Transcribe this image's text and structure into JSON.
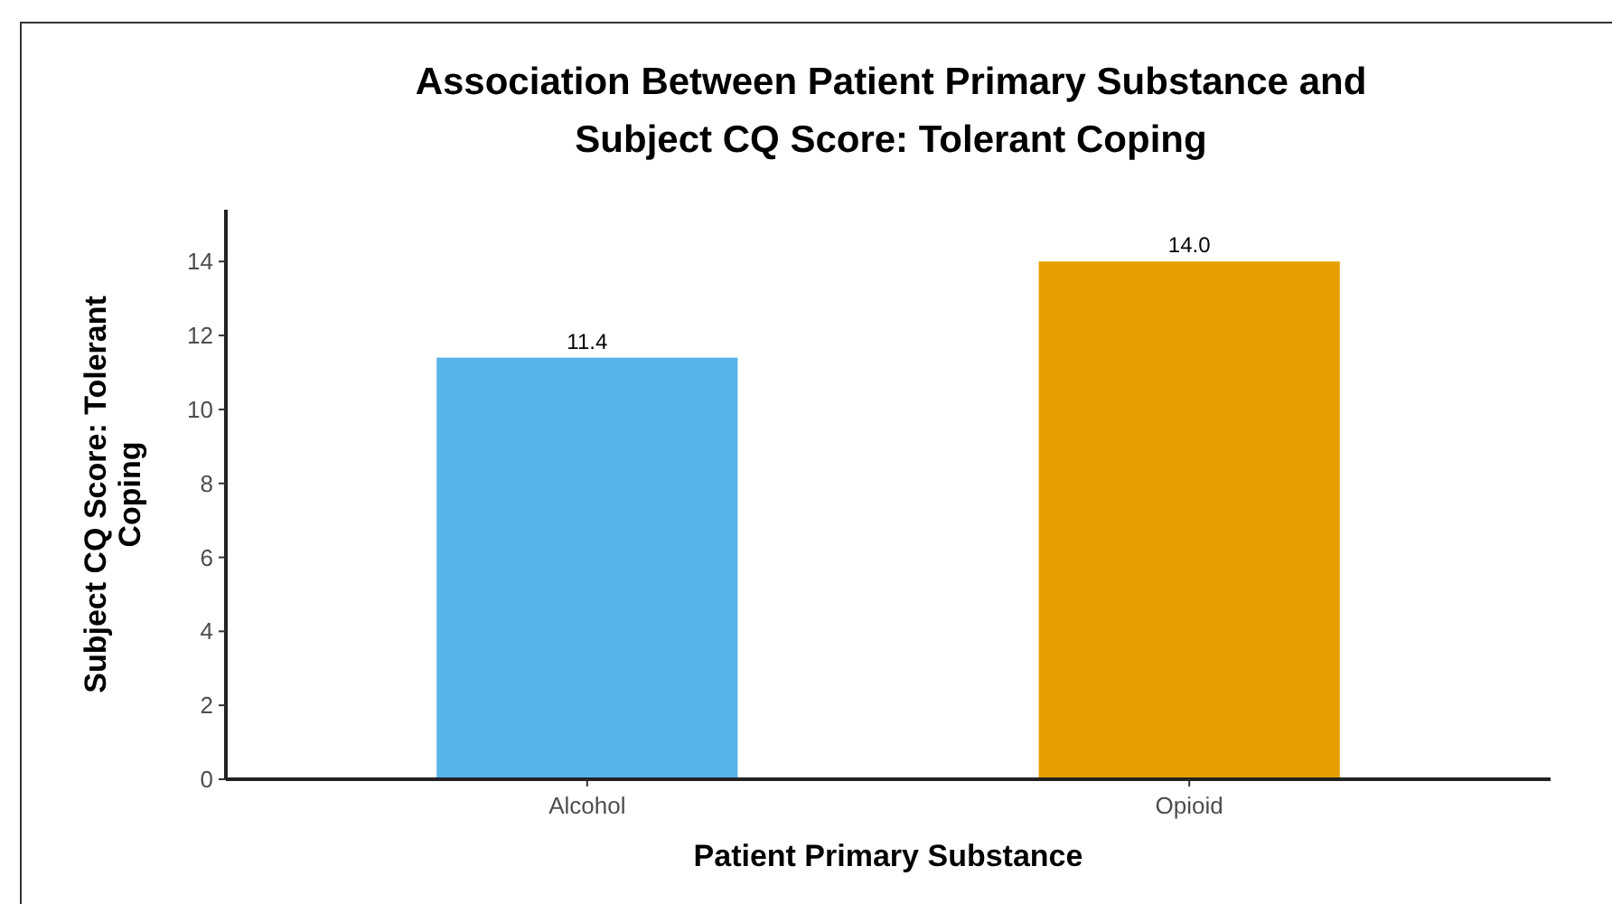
{
  "chart_data": {
    "type": "bar",
    "title": "Association Between Patient Primary Substance and\nSubject CQ Score: Tolerant Coping",
    "xlabel": "Patient Primary Substance",
    "ylabel": "Subject CQ Score: Tolerant\nCoping",
    "categories": [
      "Alcohol",
      "Opioid"
    ],
    "values": [
      11.4,
      14.0
    ],
    "value_labels": [
      "11.4",
      "14.0"
    ],
    "colors": [
      "#56b4e9",
      "#e69f00"
    ],
    "ylim": [
      0,
      15.4
    ],
    "yticks": [
      0,
      2,
      4,
      6,
      8,
      10,
      12,
      14
    ],
    "grid": false
  }
}
